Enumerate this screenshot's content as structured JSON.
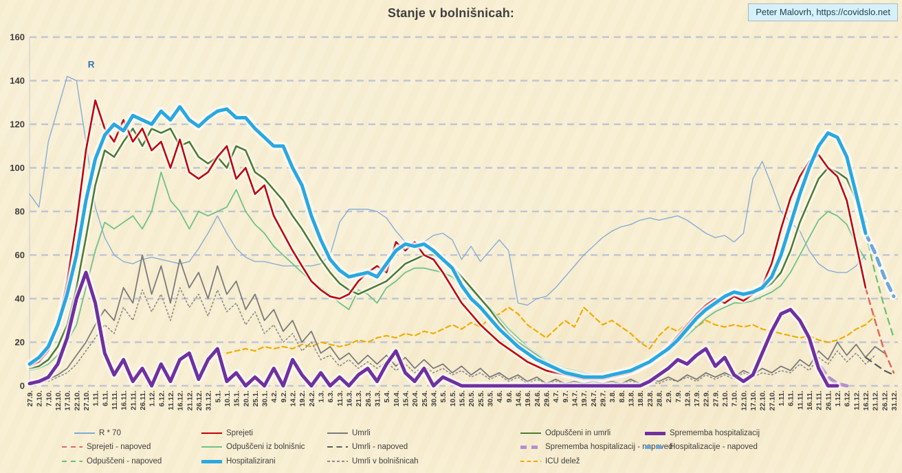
{
  "title": "Stanje v bolnišnicah:",
  "attribution": "Peter Malovrh, https://covidslo.net",
  "legend": {
    "items": [
      {
        "key": "r70",
        "label": "R * 70"
      },
      {
        "key": "sprejeti",
        "label": "Sprejeti"
      },
      {
        "key": "umrli",
        "label": "Umrli"
      },
      {
        "key": "odpusceni_in_umrli",
        "label": "Odpuščeni in umrli"
      },
      {
        "key": "sprememba",
        "label": "Sprememba hospitalizacij"
      },
      {
        "key": "sprejeti_napoved",
        "label": "Sprejeti - napoved"
      },
      {
        "key": "odpusceni_iz_bolnisnic",
        "label": "Odpuščeni iz bolnišnic"
      },
      {
        "key": "umrli_napoved",
        "label": "Umrli - napoved"
      },
      {
        "key": "sprememba_napoved",
        "label": "Sprememba hospitalizacij - napoved"
      },
      {
        "key": "hospitalizacije_napoved",
        "label": "Hospitalizacije - napoved"
      },
      {
        "key": "odpusceni_napoved",
        "label": "Odpuščeni - napoved"
      },
      {
        "key": "hospitalizirani",
        "label": "Hospitalizirani"
      },
      {
        "key": "umrli_v_bolnisnicah",
        "label": "Umrli v bolnišnicah"
      },
      {
        "key": "icu",
        "label": "ICU delež"
      }
    ]
  },
  "chart_data": {
    "type": "line",
    "title": "Stanje v bolnišnicah:",
    "xlabel": "",
    "ylabel": "",
    "ylim": [
      0,
      160
    ],
    "ytick_step": 20,
    "grid": "horizontal-dashed",
    "legend_position": "bottom",
    "annotations": [
      {
        "text": "R",
        "index": 6.2,
        "value": 146,
        "color": "#2e75b6"
      }
    ],
    "categories": [
      "27.9.",
      "2.10.",
      "7.10.",
      "12.10.",
      "17.10.",
      "22.10.",
      "27.10.",
      "1.11.",
      "6.11.",
      "11.11.",
      "16.11.",
      "21.11.",
      "26.11.",
      "1.12.",
      "6.12.",
      "11.12.",
      "16.12.",
      "21.12.",
      "26.12.",
      "31.12.",
      "5.1.",
      "10.1.",
      "15.1.",
      "20.1.",
      "25.1.",
      "30.1.",
      "4.2.",
      "9.2.",
      "14.2.",
      "19.2.",
      "24.2.",
      "1.3.",
      "6.3.",
      "11.3.",
      "16.3.",
      "21.3.",
      "26.3.",
      "31.3.",
      "5.4.",
      "10.4.",
      "15.4.",
      "20.4.",
      "25.4.",
      "30.4.",
      "5.5.",
      "10.5.",
      "15.5.",
      "20.5.",
      "25.5.",
      "30.5.",
      "4.6.",
      "9.6.",
      "14.6.",
      "19.6.",
      "24.6.",
      "29.6.",
      "4.7.",
      "9.7.",
      "14.7.",
      "19.7.",
      "24.7.",
      "29.7.",
      "3.8.",
      "8.8.",
      "13.8.",
      "18.8.",
      "23.8.",
      "28.8.",
      "2.9.",
      "7.9.",
      "12.9.",
      "17.9.",
      "22.9.",
      "27.9.",
      "2.10.",
      "7.10.",
      "12.10.",
      "17.10.",
      "22.10.",
      "27.10.",
      "1.11.",
      "6.11.",
      "11.11.",
      "16.11.",
      "21.11.",
      "26.11.",
      "1.12.",
      "6.12.",
      "11.12.",
      "16.12.",
      "21.12.",
      "26.12.",
      "31.12."
    ],
    "styles": {
      "r70": {
        "color": "#7ea9d8",
        "width": 1.3
      },
      "sprejeti": {
        "color": "#c00000",
        "width": 2.6,
        "glow": 4
      },
      "umrli": {
        "color": "#7a7a7a",
        "width": 1.8
      },
      "odpusceni_in_umrli": {
        "color": "#4e7b2f",
        "width": 2.6,
        "glow": 4
      },
      "sprememba": {
        "color": "#7030a0",
        "width": 5,
        "glow": 5
      },
      "hospitalizirani": {
        "color": "#29a8e0",
        "width": 5,
        "glow": 6
      },
      "sprejeti_napoved": {
        "color": "#e06a60",
        "width": 2.6,
        "dash": [
          9,
          7
        ]
      },
      "odpusceni_iz_bolnisnic": {
        "color": "#6fc189",
        "width": 1.8
      },
      "umrli_napoved": {
        "color": "#5a5a5a",
        "width": 2.2,
        "dash": [
          10,
          7
        ]
      },
      "sprememba_napoved": {
        "color": "#b58fcd",
        "width": 5,
        "dash": [
          11,
          9
        ]
      },
      "hospitalizacije_napoved": {
        "color": "#6ca7dd",
        "width": 5,
        "dash": [
          11,
          9
        ],
        "glow": 5
      },
      "odpusceni_napoved": {
        "color": "#68bf6e",
        "width": 2.2,
        "dash": [
          9,
          7
        ]
      },
      "umrli_v_bolnisnicah": {
        "color": "#8a8a8a",
        "width": 1.6,
        "dash": [
          2,
          3.5
        ]
      },
      "icu": {
        "color": "#f0ad00",
        "width": 2.2,
        "dash": [
          7,
          5
        ]
      }
    },
    "draw_order": [
      "r70",
      "icu",
      "umrli_v_bolnisnicah",
      "umrli",
      "umrli_napoved",
      "odpusceni_iz_bolnisnic",
      "odpusceni_napoved",
      "sprejeti_napoved",
      "odpusceni_in_umrli",
      "sprejeti",
      "sprememba_napoved",
      "sprememba",
      "hospitalizacije_napoved",
      "hospitalizirani"
    ],
    "series": {
      "hospitalizirani": {
        "start": 0,
        "values": [
          10,
          13,
          18,
          28,
          42,
          60,
          85,
          104,
          115,
          120,
          117,
          124,
          122,
          120,
          126,
          122,
          128,
          122,
          119,
          123,
          126,
          127,
          123,
          123,
          118,
          114,
          110,
          110,
          100,
          92,
          78,
          67,
          58,
          53,
          50,
          51,
          52,
          50,
          56,
          62,
          65,
          64,
          65,
          62,
          58,
          54,
          46,
          40,
          36,
          31,
          26,
          22,
          18,
          15,
          12,
          10,
          8,
          6,
          5,
          4,
          4,
          4,
          5,
          6,
          7,
          9,
          11,
          14,
          17,
          21,
          26,
          31,
          35,
          38,
          41,
          43,
          42,
          43,
          45,
          50,
          60,
          74,
          88,
          100,
          110,
          116,
          114,
          105,
          88,
          70
        ]
      },
      "sprejeti": {
        "start": 0,
        "values": [
          9,
          11,
          16,
          28,
          48,
          75,
          108,
          131,
          118,
          112,
          122,
          112,
          118,
          108,
          112,
          100,
          113,
          98,
          95,
          98,
          105,
          110,
          95,
          100,
          88,
          92,
          78,
          70,
          62,
          55,
          48,
          44,
          41,
          40,
          42,
          48,
          52,
          55,
          52,
          66,
          62,
          66,
          60,
          58,
          52,
          45,
          38,
          33,
          28,
          24,
          20,
          17,
          14,
          11,
          9,
          7,
          6,
          5,
          4,
          3,
          3,
          3,
          4,
          5,
          6,
          8,
          11,
          14,
          18,
          23,
          28,
          33,
          37,
          40,
          38,
          41,
          39,
          42,
          46,
          56,
          72,
          86,
          96,
          103,
          106,
          100,
          96,
          85,
          65,
          45
        ]
      },
      "odpusceni_in_umrli": {
        "start": 0,
        "values": [
          8,
          9,
          12,
          18,
          28,
          45,
          68,
          92,
          108,
          105,
          112,
          118,
          110,
          118,
          116,
          118,
          110,
          112,
          105,
          102,
          105,
          100,
          110,
          108,
          98,
          95,
          90,
          85,
          78,
          72,
          65,
          58,
          52,
          47,
          44,
          42,
          44,
          46,
          48,
          52,
          56,
          58,
          60,
          60,
          58,
          55,
          50,
          45,
          40,
          35,
          29,
          24,
          20,
          17,
          14,
          11,
          9,
          7,
          6,
          5,
          4,
          4,
          4,
          5,
          6,
          8,
          10,
          13,
          16,
          20,
          25,
          30,
          34,
          37,
          39,
          41,
          41,
          42,
          44,
          47,
          52,
          62,
          75,
          85,
          95,
          100,
          98,
          95,
          85,
          75
        ]
      },
      "odpusceni_iz_bolnisnic": {
        "start": 0,
        "values": [
          7,
          8,
          10,
          14,
          20,
          28,
          45,
          62,
          75,
          72,
          75,
          78,
          72,
          80,
          98,
          85,
          80,
          72,
          80,
          78,
          80,
          82,
          90,
          80,
          74,
          70,
          64,
          60,
          56,
          52,
          48,
          45,
          42,
          38,
          35,
          44,
          42,
          38,
          45,
          48,
          52,
          54,
          54,
          53,
          52,
          50,
          46,
          44,
          40,
          36,
          31,
          26,
          22,
          18,
          15,
          12,
          10,
          8,
          7,
          6,
          5,
          5,
          5,
          6,
          7,
          9,
          11,
          13,
          15,
          19,
          23,
          27,
          31,
          34,
          36,
          38,
          38,
          39,
          41,
          43,
          46,
          52,
          60,
          68,
          76,
          80,
          78,
          74,
          65,
          58
        ]
      },
      "umrli": {
        "start": 0,
        "values": [
          2,
          1,
          3,
          5,
          8,
          14,
          20,
          28,
          35,
          30,
          45,
          38,
          60,
          42,
          55,
          38,
          58,
          45,
          52,
          40,
          55,
          42,
          48,
          35,
          42,
          30,
          35,
          25,
          30,
          20,
          25,
          15,
          18,
          12,
          15,
          10,
          14,
          10,
          14,
          9,
          13,
          8,
          12,
          8,
          10,
          6,
          9,
          5,
          8,
          4,
          6,
          3,
          5,
          2,
          4,
          1,
          3,
          1,
          2,
          1,
          2,
          1,
          2,
          1,
          3,
          1,
          3,
          2,
          4,
          2,
          5,
          3,
          6,
          4,
          6,
          4,
          7,
          5,
          8,
          6,
          9,
          7,
          12,
          9,
          16,
          12,
          20,
          14,
          19,
          13,
          18,
          15
        ]
      },
      "umrli_v_bolnisnicah": {
        "start": 0,
        "values": [
          1,
          2,
          2,
          4,
          6,
          10,
          16,
          22,
          28,
          24,
          36,
          30,
          44,
          34,
          42,
          30,
          45,
          36,
          42,
          32,
          44,
          34,
          38,
          28,
          34,
          24,
          28,
          20,
          24,
          16,
          20,
          12,
          14,
          9,
          12,
          8,
          11,
          8,
          11,
          7,
          10,
          6,
          9,
          6,
          8,
          5,
          7,
          4,
          6,
          3,
          5,
          2,
          4,
          1,
          3,
          1,
          2,
          1,
          1,
          0,
          1,
          0,
          1,
          1,
          2,
          1,
          2,
          1,
          3,
          2,
          4,
          2,
          5,
          3,
          5,
          3,
          6,
          4,
          6,
          5,
          7,
          6,
          10,
          7,
          13,
          10,
          16,
          11,
          15,
          10,
          14
        ]
      },
      "sprememba": {
        "start": 0,
        "values": [
          1,
          2,
          4,
          10,
          22,
          40,
          52,
          38,
          15,
          5,
          12,
          2,
          8,
          0,
          10,
          2,
          12,
          15,
          3,
          12,
          17,
          2,
          6,
          0,
          4,
          0,
          8,
          0,
          12,
          5,
          0,
          6,
          0,
          4,
          0,
          5,
          8,
          2,
          10,
          16,
          6,
          2,
          8,
          0,
          4,
          2,
          0,
          0,
          0,
          0,
          0,
          0,
          0,
          0,
          0,
          0,
          0,
          0,
          0,
          0,
          0,
          0,
          0,
          0,
          0,
          0,
          2,
          5,
          8,
          12,
          10,
          14,
          17,
          9,
          13,
          5,
          2,
          5,
          15,
          25,
          33,
          35,
          30,
          22,
          8,
          0,
          0
        ]
      },
      "r70": {
        "start": 0,
        "values": [
          88,
          82,
          112,
          127,
          142,
          140,
          112,
          82,
          68,
          60,
          57,
          56,
          58,
          59,
          58,
          57,
          56,
          57,
          63,
          70,
          78,
          70,
          63,
          59,
          57,
          57,
          56,
          55,
          55,
          55,
          55,
          56,
          60,
          75,
          81,
          81,
          81,
          80,
          77,
          71,
          66,
          64,
          66,
          69,
          70,
          67,
          58,
          64,
          57,
          62,
          67,
          62,
          38,
          37,
          40,
          41,
          45,
          50,
          55,
          60,
          64,
          68,
          71,
          73,
          74,
          76,
          77,
          76,
          77,
          78,
          76,
          73,
          70,
          68,
          69,
          66,
          70,
          95,
          103,
          92,
          80,
          75,
          71,
          62,
          56,
          53,
          52,
          52,
          55,
          60
        ]
      },
      "icu": {
        "start": 21,
        "values": [
          15,
          16,
          17,
          16,
          18,
          17,
          18,
          17,
          19,
          18,
          20,
          19,
          18,
          19,
          21,
          20,
          22,
          23,
          22,
          24,
          23,
          25,
          24,
          26,
          28,
          26,
          29,
          27,
          31,
          33,
          36,
          33,
          28,
          25,
          22,
          26,
          30,
          27,
          36,
          32,
          28,
          30,
          27,
          24,
          20,
          17,
          23,
          27,
          25,
          29,
          27,
          30,
          28,
          27,
          28,
          27,
          28,
          26,
          25,
          24,
          23,
          22,
          23,
          21,
          20,
          21,
          23,
          26,
          28,
          32
        ]
      },
      "hospitalizacije_napoved": {
        "start": 89,
        "values": [
          70,
          61,
          50,
          41
        ]
      },
      "sprejeti_napoved": {
        "start": 89,
        "values": [
          45,
          30,
          16,
          6
        ]
      },
      "odpusceni_napoved": {
        "start": 89,
        "values": [
          70,
          52,
          36,
          22
        ]
      },
      "umrli_napoved": {
        "start": 89,
        "values": [
          13,
          10,
          7,
          5
        ]
      },
      "sprememba_napoved": {
        "start": 83,
        "values": [
          20,
          10,
          4,
          1,
          0
        ]
      }
    }
  }
}
